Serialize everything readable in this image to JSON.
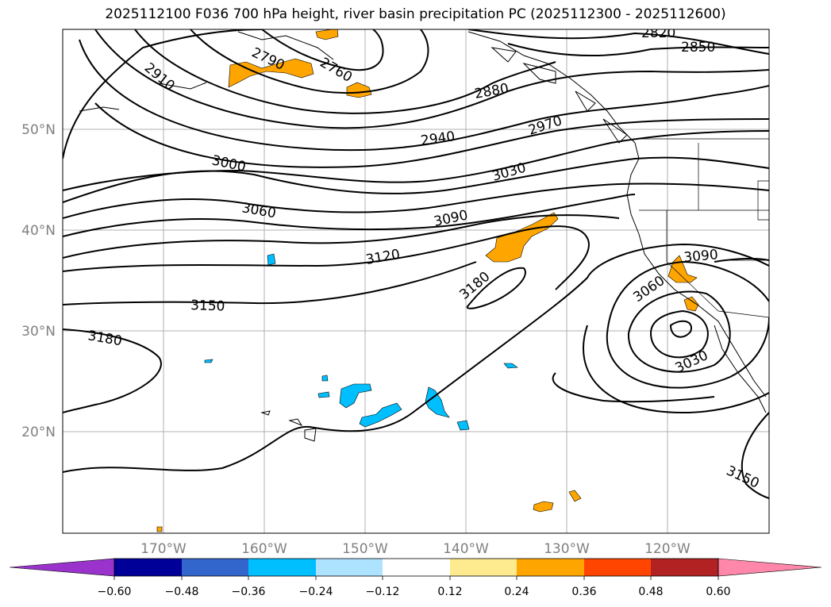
{
  "title": "2025112100 F036 700 hPa height, river basin precipitation PC (2025112300 - 2025112600)",
  "map": {
    "lon_labels": [
      "170°W",
      "160°W",
      "150°W",
      "140°W",
      "130°W",
      "120°W"
    ],
    "lat_labels": [
      "50°N",
      "40°N",
      "30°N",
      "20°N"
    ],
    "contour_labels": [
      "2820",
      "2850",
      "2790",
      "2760",
      "2910",
      "2880",
      "2970",
      "2940",
      "3000",
      "3030",
      "3060",
      "3090",
      "3120",
      "3180",
      "3150",
      "3180",
      "3090",
      "3060",
      "3030",
      "3150"
    ]
  },
  "colorbar": {
    "colors": [
      "#9933cc",
      "#000099",
      "#3366cc",
      "#00bfff",
      "#aee3ff",
      "#ffffff",
      "#ffeb8f",
      "#ffa500",
      "#ff4500",
      "#b22222",
      "#ff88aa"
    ],
    "tick_labels": [
      "−0.60",
      "−0.48",
      "−0.36",
      "−0.24",
      "−0.12",
      "0.12",
      "0.24",
      "0.36",
      "0.48",
      "0.60"
    ]
  }
}
